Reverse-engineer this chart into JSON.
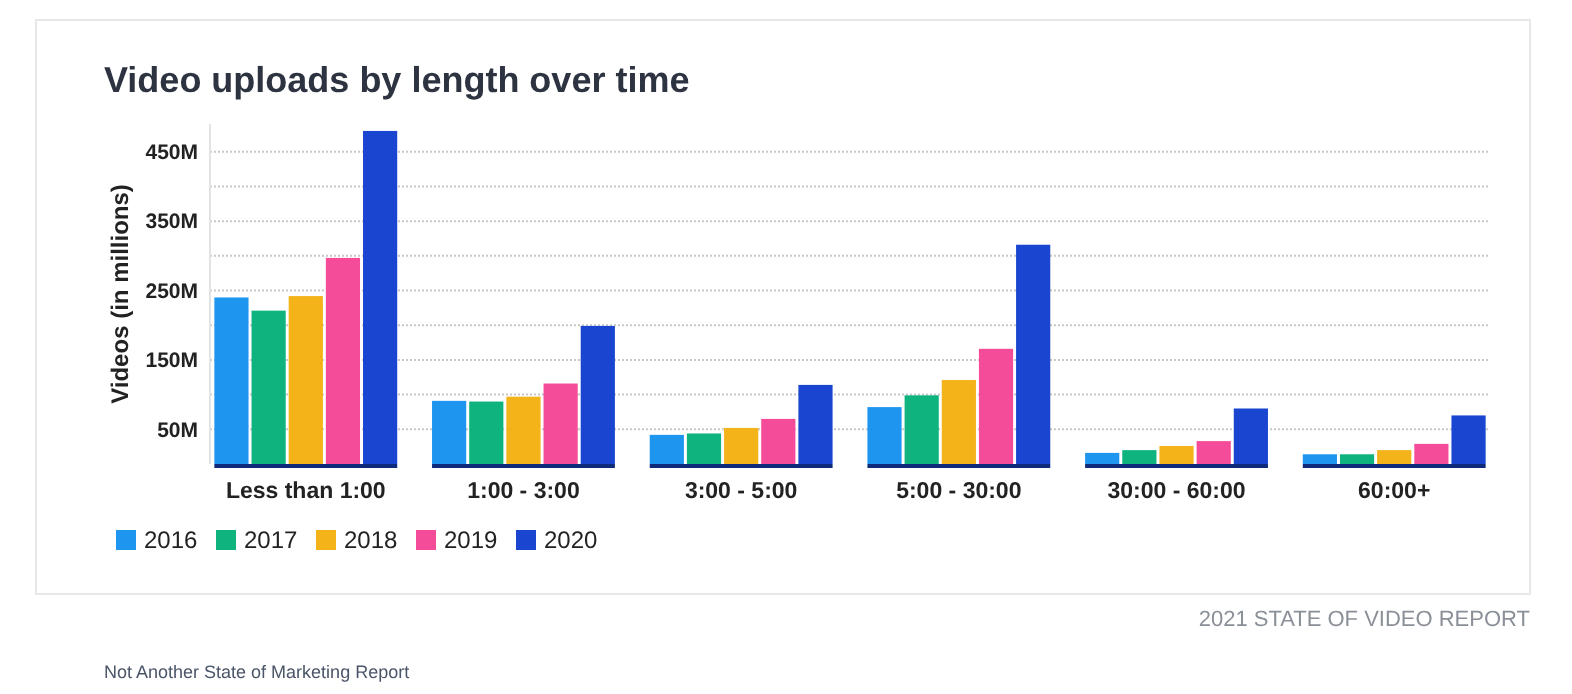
{
  "chart_data": {
    "type": "bar",
    "title": "Video uploads by length over time",
    "ylabel": "Videos (in millions)",
    "categories": [
      "Less than 1:00",
      "1:00 - 3:00",
      "3:00 - 5:00",
      "5:00 - 30:00",
      "30:00 - 60:00",
      "60:00+"
    ],
    "series": [
      {
        "name": "2016",
        "color": "#1e96f0",
        "values": [
          240,
          91,
          42,
          82,
          16,
          14
        ]
      },
      {
        "name": "2017",
        "color": "#0fb37e",
        "values": [
          221,
          90,
          44,
          99,
          20,
          14
        ]
      },
      {
        "name": "2018",
        "color": "#f3b319",
        "values": [
          242,
          97,
          52,
          121,
          26,
          20
        ]
      },
      {
        "name": "2019",
        "color": "#f54c9a",
        "values": [
          297,
          116,
          65,
          166,
          33,
          29
        ]
      },
      {
        "name": "2020",
        "color": "#1a45d0",
        "values": [
          480,
          199,
          114,
          316,
          80,
          70
        ]
      }
    ],
    "ylim": [
      0,
      490
    ],
    "yticks": [
      {
        "value": 50,
        "label": "50M"
      },
      {
        "value": 100,
        "label": null
      },
      {
        "value": 150,
        "label": "150M"
      },
      {
        "value": 200,
        "label": null
      },
      {
        "value": 250,
        "label": "250M"
      },
      {
        "value": 300,
        "label": null
      },
      {
        "value": 350,
        "label": "350M"
      },
      {
        "value": 400,
        "label": null
      },
      {
        "value": 450,
        "label": "450M"
      }
    ],
    "grid": "y",
    "legend": "bottom left",
    "annotations": [
      "2021 STATE OF VIDEO REPORT",
      "Not Another State of Marketing Report"
    ]
  }
}
